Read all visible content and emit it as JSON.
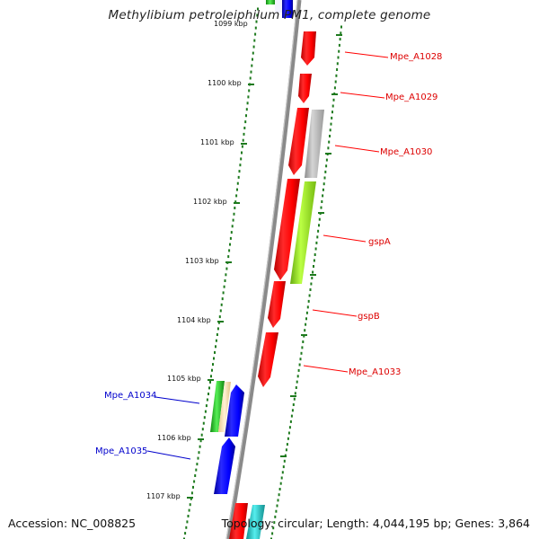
{
  "title": "Methylibium petroleiphilum PM1, complete genome",
  "footer": {
    "accession": "Accession: NC_008825",
    "topology": "Topology: circular; Length: 4,044,195 bp; Genes: 3,864"
  },
  "scale": {
    "top_partial_label": "1099 kbp",
    "labels": [
      "1100 kbp",
      "1101 kbp",
      "1102 kbp",
      "1103 kbp",
      "1104 kbp",
      "1105 kbp",
      "1106 kbp",
      "1107 kbp"
    ]
  },
  "genes_right": [
    {
      "name": "Mpe_A1028",
      "color": "#ff0000"
    },
    {
      "name": "Mpe_A1029",
      "color": "#ff0000"
    },
    {
      "name": "Mpe_A1030",
      "color": "#ff0000"
    },
    {
      "name": "gspA",
      "color": "#ff0000"
    },
    {
      "name": "gspB",
      "color": "#ff0000"
    },
    {
      "name": "Mpe_A1033",
      "color": "#ff0000"
    }
  ],
  "genes_left": [
    {
      "name": "Mpe_A1034",
      "color": "#0000cc"
    },
    {
      "name": "Mpe_A1035",
      "color": "#0000cc"
    }
  ],
  "colors": {
    "axis": "#8a8a8a",
    "tick": "#1e7a1e",
    "forward_gene": "#ff0000",
    "reverse_gene": "#0000ff",
    "gray_feature": "#bbbbbb",
    "lime_feature": "#99ee22",
    "green_feature": "#33cc33",
    "beige_feature": "#f5ddb0",
    "cyan_feature": "#22cccc"
  }
}
